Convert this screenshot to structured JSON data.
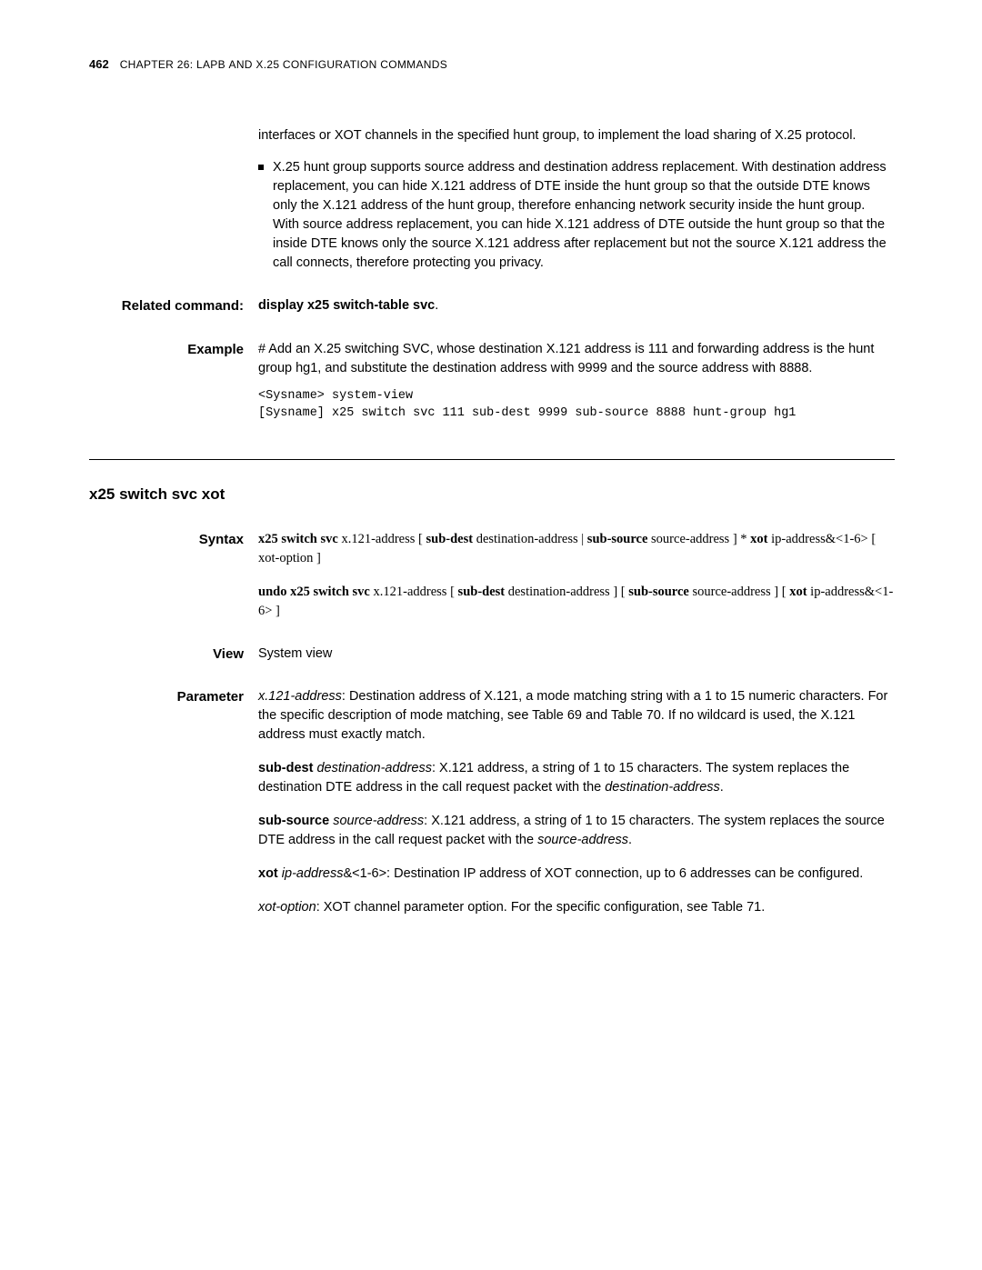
{
  "header": {
    "pageNumber": "462",
    "chapterPrefix": "C",
    "chapterRest": "HAPTER",
    "chapterNum": " 26: LAPB ",
    "andPrefix": "AND",
    "x25": " X.25 C",
    "confRest": "ONFIGURATION",
    "cmdPrefix": " C",
    "cmdRest": "OMMANDS"
  },
  "intro": {
    "continuation": "interfaces or XOT channels in the specified hunt group, to implement the load sharing of X.25 protocol.",
    "bullet": "X.25 hunt group supports source address and destination address replacement. With destination address replacement, you can hide X.121 address of DTE inside the hunt group so that the outside DTE knows only the X.121 address of the hunt group, therefore enhancing network security inside the hunt group. With source address replacement, you can hide X.121 address of DTE outside the hunt group so that the inside DTE knows only the source X.121 address after replacement but not the source X.121 address the call connects, therefore protecting you privacy."
  },
  "related": {
    "label": "Related command:",
    "textBold": "display x25 switch-table svc",
    "period": "."
  },
  "example": {
    "label": "Example",
    "text": "# Add an X.25 switching SVC, whose destination X.121 address is 111 and forwarding address is the hunt group hg1, and substitute the destination address with 9999 and the source address with 8888.",
    "code": "<Sysname> system-view\n[Sysname] x25 switch svc 111 sub-dest 9999 sub-source 8888 hunt-group hg1"
  },
  "sectionTitle": "x25 switch svc xot",
  "syntax": {
    "label": "Syntax",
    "l1a": "x25 switch svc ",
    "l1b": "x.121-address",
    "l1c": " [ ",
    "l1d": "sub-dest ",
    "l1e": "destination-address",
    "l1f": " | ",
    "l1fBold": "sub-source ",
    "l2a": "source-address",
    "l2b": " ] * ",
    "l2c": "xot ",
    "l2d": "ip-address",
    "l2e": "&<1-6> [ ",
    "l2f": "xot-option",
    "l2g": " ]",
    "u1a": "undo x25 switch svc ",
    "u1b": "x.121-address",
    "u1c": " [ ",
    "u1d": "sub-dest ",
    "u1e": "destination-address",
    "u1f": " ] [ ",
    "u1g": " sub-source ",
    "u2a": "source-address",
    "u2b": " ] [ ",
    "u2c": " xot ",
    "u2d": "ip-address",
    "u2e": "&<1-6> ]"
  },
  "view": {
    "label": "View",
    "text": "System view"
  },
  "param": {
    "label": "Parameter",
    "p1a": "x.121-address",
    "p1b": ": Destination address of X.121, a mode matching string with a 1 to 15 numeric characters. For the specific description of mode matching, see Table 69 and Table 70. If no wildcard is used, the X.121 address must exactly match.",
    "p2a": "sub-dest",
    "p2b": " destination-address",
    "p2c": ": X.121 address, a string of 1 to 15 characters. The system replaces the destination DTE address in the call request packet with the ",
    "p2d": "destination-address",
    "p2e": ".",
    "p3a": "sub-source",
    "p3b": " source-address",
    "p3c": ": X.121 address, a string of 1 to 15 characters. The system replaces the source DTE address in the call request packet with the ",
    "p3d": "source-address",
    "p3e": ".",
    "p4a": "xot",
    "p4b": " ip-address",
    "p4c": "&<1-6>: Destination IP address of XOT connection, up to 6 addresses can be configured.",
    "p5a": "xot-option",
    "p5b": ": XOT channel parameter option. For the specific configuration, see Table 71."
  }
}
